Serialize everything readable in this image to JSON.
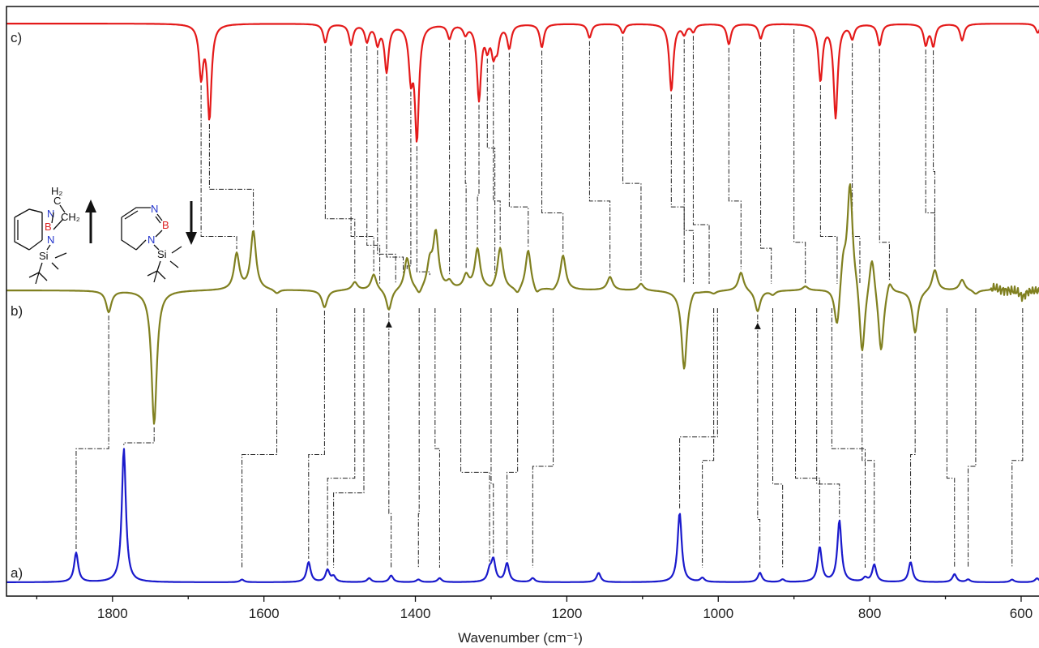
{
  "chart_data": {
    "type": "line",
    "xlabel": "Wavenumber (cm⁻¹)",
    "x_range": [
      1940,
      570
    ],
    "x_reversed": true,
    "x_ticks": [
      1800,
      1600,
      1400,
      1200,
      1000,
      800,
      600
    ],
    "grid": false,
    "colors": {
      "a": "#1a1acc",
      "b": "#808020",
      "c": "#e41a1a",
      "connector": "#222222"
    },
    "annotations": [
      {
        "marker": "triangle",
        "series": "b",
        "x": 1435
      },
      {
        "marker": "triangle",
        "series": "b",
        "x": 948
      }
    ],
    "series": [
      {
        "panel": "a)",
        "style": "peaks-up",
        "peaks": [
          {
            "x": 1848,
            "y": 0.22
          },
          {
            "x": 1785,
            "y": 1.0
          },
          {
            "x": 1629,
            "y": 0.02
          },
          {
            "x": 1541,
            "y": 0.15
          },
          {
            "x": 1516,
            "y": 0.09
          },
          {
            "x": 1508,
            "y": 0.04
          },
          {
            "x": 1461,
            "y": 0.03
          },
          {
            "x": 1432,
            "y": 0.05
          },
          {
            "x": 1396,
            "y": 0.02
          },
          {
            "x": 1368,
            "y": 0.03
          },
          {
            "x": 1302,
            "y": 0.08
          },
          {
            "x": 1297,
            "y": 0.16
          },
          {
            "x": 1279,
            "y": 0.14
          },
          {
            "x": 1245,
            "y": 0.03
          },
          {
            "x": 1158,
            "y": 0.07
          },
          {
            "x": 1051,
            "y": 0.52
          },
          {
            "x": 1021,
            "y": 0.03
          },
          {
            "x": 945,
            "y": 0.07
          },
          {
            "x": 915,
            "y": 0.02
          },
          {
            "x": 866,
            "y": 0.26
          },
          {
            "x": 840,
            "y": 0.46
          },
          {
            "x": 806,
            "y": 0.03
          },
          {
            "x": 794,
            "y": 0.13
          },
          {
            "x": 746,
            "y": 0.15
          },
          {
            "x": 688,
            "y": 0.06
          },
          {
            "x": 670,
            "y": 0.02
          },
          {
            "x": 612,
            "y": 0.02
          },
          {
            "x": 579,
            "y": 0.03
          }
        ]
      },
      {
        "panel": "b)",
        "style": "difference",
        "peaks": [
          {
            "x": 1805,
            "y": -0.16
          },
          {
            "x": 1745,
            "y": -1.0
          },
          {
            "x": 1636,
            "y": 0.27
          },
          {
            "x": 1614,
            "y": 0.44
          },
          {
            "x": 1583,
            "y": -0.03
          },
          {
            "x": 1520,
            "y": -0.13
          },
          {
            "x": 1480,
            "y": 0.06
          },
          {
            "x": 1455,
            "y": 0.12
          },
          {
            "x": 1435,
            "y": -0.16
          },
          {
            "x": 1411,
            "y": 0.24
          },
          {
            "x": 1395,
            "y": -0.06
          },
          {
            "x": 1373,
            "y": 0.41
          },
          {
            "x": 1381,
            "y": 0.18
          },
          {
            "x": 1355,
            "y": 0.05
          },
          {
            "x": 1333,
            "y": 0.1
          },
          {
            "x": 1318,
            "y": 0.3
          },
          {
            "x": 1300,
            "y": -0.02
          },
          {
            "x": 1288,
            "y": 0.31
          },
          {
            "x": 1265,
            "y": -0.05
          },
          {
            "x": 1251,
            "y": 0.3
          },
          {
            "x": 1240,
            "y": -0.05
          },
          {
            "x": 1218,
            "y": -0.02
          },
          {
            "x": 1205,
            "y": 0.26
          },
          {
            "x": 1143,
            "y": 0.1
          },
          {
            "x": 1102,
            "y": 0.05
          },
          {
            "x": 1045,
            "y": -0.59
          },
          {
            "x": 1032,
            "y": 0.03
          },
          {
            "x": 1006,
            "y": -0.02
          },
          {
            "x": 970,
            "y": 0.14
          },
          {
            "x": 948,
            "y": -0.16
          },
          {
            "x": 928,
            "y": -0.03
          },
          {
            "x": 885,
            "y": 0.03
          },
          {
            "x": 843,
            "y": -0.33
          },
          {
            "x": 835,
            "y": 0.22
          },
          {
            "x": 826,
            "y": 0.8
          },
          {
            "x": 817,
            "y": 0.05
          },
          {
            "x": 810,
            "y": -0.53
          },
          {
            "x": 797,
            "y": 0.3
          },
          {
            "x": 785,
            "y": -0.48
          },
          {
            "x": 774,
            "y": 0.1
          },
          {
            "x": 740,
            "y": -0.32
          },
          {
            "x": 714,
            "y": 0.16
          },
          {
            "x": 678,
            "y": 0.08
          },
          {
            "x": 660,
            "y": -0.03
          },
          {
            "x": 635,
            "y": 0.02
          },
          {
            "x": 598,
            "y": -0.05
          }
        ]
      },
      {
        "panel": "c)",
        "style": "peaks-down",
        "peaks": [
          {
            "x": 1683,
            "y": 0.55
          },
          {
            "x": 1672,
            "y": 1.0
          },
          {
            "x": 1519,
            "y": 0.2
          },
          {
            "x": 1485,
            "y": 0.22
          },
          {
            "x": 1464,
            "y": 0.18
          },
          {
            "x": 1450,
            "y": 0.2
          },
          {
            "x": 1438,
            "y": 0.5
          },
          {
            "x": 1406,
            "y": 0.52
          },
          {
            "x": 1398,
            "y": 1.2
          },
          {
            "x": 1355,
            "y": 0.15
          },
          {
            "x": 1334,
            "y": 0.1
          },
          {
            "x": 1316,
            "y": 0.8
          },
          {
            "x": 1305,
            "y": 0.22
          },
          {
            "x": 1297,
            "y": 0.28
          },
          {
            "x": 1292,
            "y": 0.22
          },
          {
            "x": 1276,
            "y": 0.25
          },
          {
            "x": 1233,
            "y": 0.25
          },
          {
            "x": 1170,
            "y": 0.15
          },
          {
            "x": 1126,
            "y": 0.1
          },
          {
            "x": 1062,
            "y": 0.72
          },
          {
            "x": 1045,
            "y": 0.1
          },
          {
            "x": 1033,
            "y": 0.08
          },
          {
            "x": 986,
            "y": 0.22
          },
          {
            "x": 944,
            "y": 0.16
          },
          {
            "x": 865,
            "y": 0.6
          },
          {
            "x": 845,
            "y": 1.0
          },
          {
            "x": 823,
            "y": 0.15
          },
          {
            "x": 787,
            "y": 0.23
          },
          {
            "x": 726,
            "y": 0.22
          },
          {
            "x": 716,
            "y": 0.23
          },
          {
            "x": 678,
            "y": 0.18
          },
          {
            "x": 578,
            "y": 0.1
          }
        ]
      }
    ],
    "connectors": [
      {
        "b": 1805,
        "a": 1848,
        "hy": 0.75
      },
      {
        "b": 1745,
        "a": 1785,
        "hy": 0.74
      },
      {
        "b": 1583,
        "a": 1629,
        "hy": 0.76
      },
      {
        "b": 1520,
        "a": 1541,
        "hy": 0.76
      },
      {
        "b": 1480,
        "a": 1516,
        "hy": 0.8
      },
      {
        "b": 1468,
        "a": 1508,
        "hy": 0.825
      },
      {
        "b": 1435,
        "a": 1432,
        "hy": 0.86
      },
      {
        "b": 1395,
        "a": 1396,
        "hy": 0.86
      },
      {
        "b": 1374,
        "a": 1368,
        "hy": 0.75
      },
      {
        "b": 1340,
        "a": 1302,
        "hy": 0.79
      },
      {
        "b": 1300,
        "a": 1297,
        "hy": 0.81
      },
      {
        "b": 1265,
        "a": 1279,
        "hy": 0.79
      },
      {
        "b": 1218,
        "a": 1245,
        "hy": 0.78
      },
      {
        "b": 1006,
        "a": 1021,
        "hy": 0.77
      },
      {
        "b": 1001,
        "a": 1051,
        "hy": 0.73
      },
      {
        "b": 948,
        "a": 945,
        "hy": 0.87
      },
      {
        "b": 928,
        "a": 915,
        "hy": 0.81
      },
      {
        "b": 898,
        "a": 866,
        "hy": 0.8
      },
      {
        "b": 870,
        "a": 840,
        "hy": 0.81
      },
      {
        "b": 850,
        "a": 806,
        "hy": 0.75
      },
      {
        "b": 810,
        "a": 794,
        "hy": 0.77
      },
      {
        "b": 740,
        "a": 746,
        "hy": 0.76
      },
      {
        "b": 698,
        "a": 688,
        "hy": 0.8
      },
      {
        "b": 660,
        "a": 670,
        "hy": 0.78
      },
      {
        "b": 598,
        "a": 612,
        "hy": 0.77
      }
    ],
    "connectors_upper": [
      {
        "c": 1683,
        "b": 1636,
        "hy": 0.39
      },
      {
        "c": 1672,
        "b": 1614,
        "hy": 0.31
      },
      {
        "c": 1519,
        "b": 1480,
        "hy": 0.36
      },
      {
        "c": 1485,
        "b": 1455,
        "hy": 0.39
      },
      {
        "c": 1464,
        "b": 1447,
        "hy": 0.405
      },
      {
        "c": 1450,
        "b": 1426,
        "hy": 0.42
      },
      {
        "c": 1438,
        "b": 1416,
        "hy": 0.425
      },
      {
        "c": 1406,
        "b": 1411,
        "hy": 0.44
      },
      {
        "c": 1398,
        "b": 1381,
        "hy": 0.45
      },
      {
        "c": 1355,
        "b": 1355,
        "hy": 0.22
      },
      {
        "c": 1334,
        "b": 1333,
        "hy": 0.3
      },
      {
        "c": 1316,
        "b": 1318,
        "hy": 0.32
      },
      {
        "c": 1305,
        "b": 1295,
        "hy": 0.24
      },
      {
        "c": 1297,
        "b": 1288,
        "hy": 0.33
      },
      {
        "c": 1276,
        "b": 1251,
        "hy": 0.34
      },
      {
        "c": 1233,
        "b": 1205,
        "hy": 0.35
      },
      {
        "c": 1170,
        "b": 1143,
        "hy": 0.33
      },
      {
        "c": 1126,
        "b": 1102,
        "hy": 0.3
      },
      {
        "c": 1062,
        "b": 1045,
        "hy": 0.34
      },
      {
        "c": 1045,
        "b": 1033,
        "hy": 0.38
      },
      {
        "c": 1033,
        "b": 1012,
        "hy": 0.37
      },
      {
        "c": 986,
        "b": 970,
        "hy": 0.33
      },
      {
        "c": 944,
        "b": 930,
        "hy": 0.41
      },
      {
        "c": 900,
        "b": 885,
        "hy": 0.4
      },
      {
        "c": 865,
        "b": 843,
        "hy": 0.39
      },
      {
        "c": 823,
        "b": 813,
        "hy": 0.39
      },
      {
        "c": 787,
        "b": 774,
        "hy": 0.4
      },
      {
        "c": 726,
        "b": 714,
        "hy": 0.35
      },
      {
        "c": 716,
        "b": 714,
        "hy": 0.28
      }
    ],
    "inset": {
      "arrow_left": "up",
      "arrow_right": "down",
      "mol_left": {
        "atoms": [
          "H₂",
          "C",
          "N",
          "B",
          "CH₂",
          "N",
          "Si"
        ]
      },
      "mol_right": {
        "atoms": [
          "N",
          "B",
          "N",
          "Si"
        ]
      }
    }
  }
}
